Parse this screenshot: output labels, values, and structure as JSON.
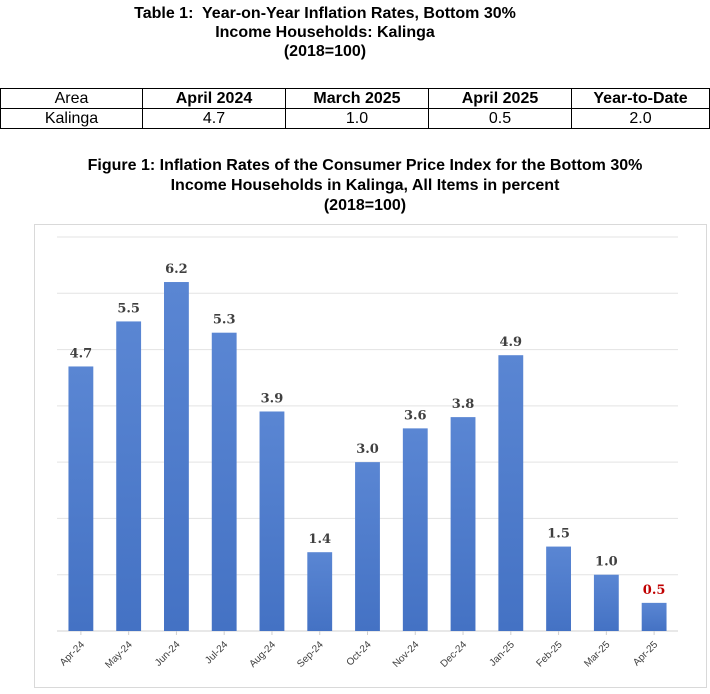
{
  "table": {
    "title_lines": [
      "Table 1:  Year-on-Year Inflation Rates, Bottom 30%",
      "Income Households: Kalinga",
      "(2018=100)"
    ],
    "headers": [
      "Area",
      "April 2024",
      "March 2025",
      "April 2025",
      "Year-to-Date"
    ],
    "row": [
      "Kalinga",
      "4.7",
      "1.0",
      "0.5",
      "2.0"
    ]
  },
  "figure": {
    "title_lines": [
      "Figure 1: Inflation Rates of the Consumer Price Index for the Bottom 30%",
      "Income Households in Kalinga, All Items in percent",
      "(2018=100)"
    ]
  },
  "chart_data": {
    "type": "bar",
    "categories": [
      "Apr-24",
      "May-24",
      "Jun-24",
      "Jul-24",
      "Aug-24",
      "Sep-24",
      "Oct-24",
      "Nov-24",
      "Dec-24",
      "Jan-25",
      "Feb-25",
      "Mar-25",
      "Apr-25"
    ],
    "values": [
      4.7,
      5.5,
      6.2,
      5.3,
      3.9,
      1.4,
      3.0,
      3.6,
      3.8,
      4.9,
      1.5,
      1.0,
      0.5
    ],
    "labels": [
      "4.7",
      "5.5",
      "6.2",
      "5.3",
      "3.9",
      "1.4",
      "3.0",
      "3.6",
      "3.8",
      "4.9",
      "1.5",
      "1.0",
      "0.5"
    ],
    "ylim": [
      0,
      7
    ],
    "grid": true,
    "bar_color": "#4472c4",
    "label_color": "#404040",
    "highlight_label_color": "#c00000",
    "highlight_index": 12
  }
}
